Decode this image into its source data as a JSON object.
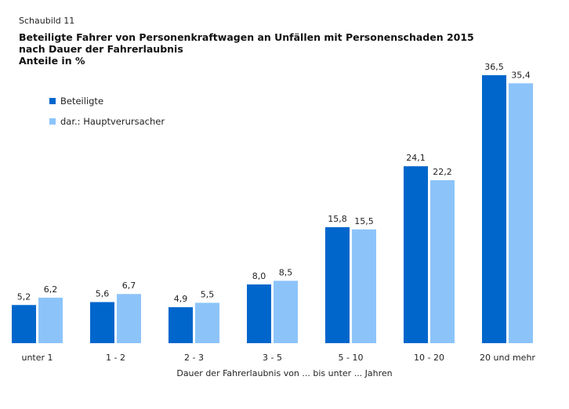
{
  "figure_label": "Schaubild 11",
  "title_lines": [
    "Beteiligte Fahrer von Personenkraftwagen an Unfällen mit Personenschaden 2015",
    "nach Dauer der Fahrerlaubnis",
    "Anteile in %"
  ],
  "chart_data": {
    "type": "bar",
    "title": "Beteiligte Fahrer von Personenkraftwagen an Unfällen mit Personenschaden 2015 nach Dauer der Fahrerlaubnis",
    "subtitle": "Anteile in %",
    "xlabel": "Dauer der Fahrerlaubnis von ... bis unter ... Jahren",
    "ylabel": "",
    "categories": [
      "unter 1",
      "1 - 2",
      "2 - 3",
      "3 - 5",
      "5 - 10",
      "10 - 20",
      "20 und mehr"
    ],
    "series": [
      {
        "name": "Beteiligte",
        "color": "#0066cc",
        "values": [
          5.2,
          5.6,
          4.9,
          8.0,
          15.8,
          24.1,
          36.5
        ],
        "labels": [
          "5,2",
          "5,6",
          "4,9",
          "8,0",
          "15,8",
          "24,1",
          "36,5"
        ]
      },
      {
        "name": "dar.: Hauptverursacher",
        "color": "#8cc4fa",
        "values": [
          6.2,
          6.7,
          5.5,
          8.5,
          15.5,
          22.2,
          35.4
        ],
        "labels": [
          "6,2",
          "6,7",
          "5,5",
          "8,5",
          "15,5",
          "22,2",
          "35,4"
        ]
      }
    ],
    "ylim": [
      0,
      36.5
    ],
    "grid": false,
    "legend": "top-left"
  }
}
